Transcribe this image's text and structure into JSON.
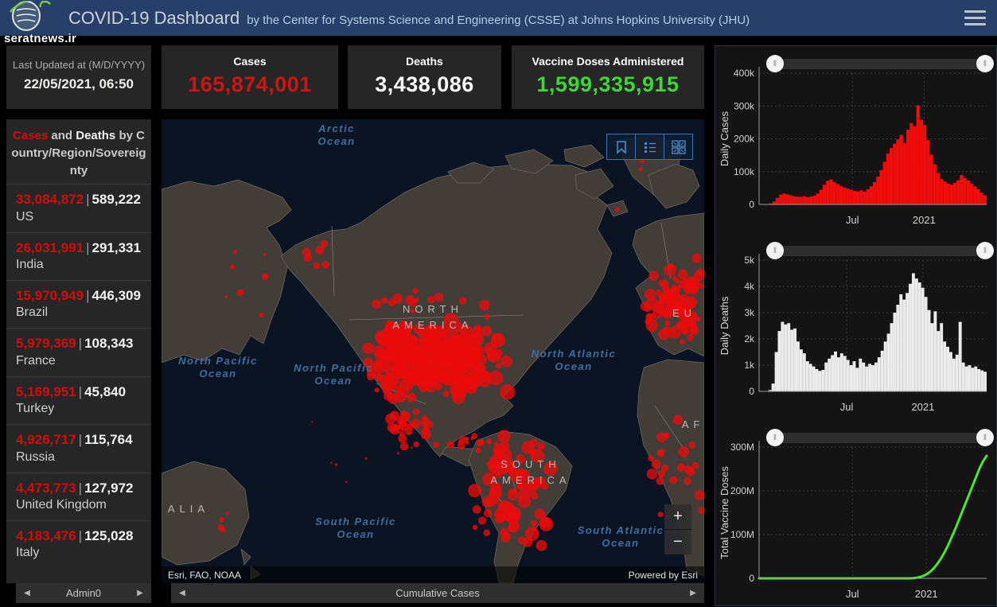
{
  "header": {
    "title": "COVID-19 Dashboard",
    "subtitle": "by the Center for Systems Science and Engineering (CSSE) at Johns Hopkins University (JHU)",
    "watermark": "seratnews.ir"
  },
  "last_updated": {
    "label": "Last Updated at (M/D/YYYY)",
    "value": "22/05/2021, 06:50"
  },
  "stats": {
    "cases": {
      "label": "Cases",
      "value": "165,874,001",
      "color": "#cf1414"
    },
    "deaths": {
      "label": "Deaths",
      "value": "3,438,086",
      "color": "#fbfbfb"
    },
    "vaccine": {
      "label": "Vaccine Doses Administered",
      "value": "1,599,335,915",
      "color": "#3fd63a"
    }
  },
  "country_panel": {
    "title_cases": "Cases",
    "title_and": " and ",
    "title_deaths": "Deaths",
    "title_rest": " by Country/Region/Sovereignty",
    "footer": "Admin0",
    "rows": [
      {
        "cases": "33,084,872",
        "deaths": "589,222",
        "country": "US"
      },
      {
        "cases": "26,031,991",
        "deaths": "291,331",
        "country": "India"
      },
      {
        "cases": "15,970,949",
        "deaths": "446,309",
        "country": "Brazil"
      },
      {
        "cases": "5,979,369",
        "deaths": "108,343",
        "country": "France"
      },
      {
        "cases": "5,169,951",
        "deaths": "45,840",
        "country": "Turkey"
      },
      {
        "cases": "4,926,717",
        "deaths": "115,764",
        "country": "Russia"
      },
      {
        "cases": "4,473,773",
        "deaths": "127,972",
        "country": "United Kingdom"
      },
      {
        "cases": "4,183,476",
        "deaths": "125,028",
        "country": "Italy"
      }
    ]
  },
  "map": {
    "ocean_labels": [
      "Arctic Ocean",
      "North Pacific Ocean",
      "North Pacific Ocean",
      "North Atlantic Ocean",
      "South Pacific Ocean",
      "South Atlantic Ocean"
    ],
    "region_labels": [
      "NORTH AMERICA",
      "SOUTH AMERICA",
      "ALIA",
      "EU",
      "AF"
    ],
    "attribution_left": "Esri, FAO, NOAA",
    "attribution_right": "Powered by Esri",
    "zoom_in": "+",
    "zoom_out": "−",
    "footer": "Cumulative Cases",
    "dot_color": "#ea0b0b"
  },
  "chart_data": [
    {
      "type": "bar",
      "ylabel": "Daily Cases",
      "color": "#f20d0d",
      "ylim": [
        0,
        400000
      ],
      "yticks": [
        {
          "v": 0,
          "label": "0"
        },
        {
          "v": 100000,
          "label": "100k"
        },
        {
          "v": 200000,
          "label": "200k"
        },
        {
          "v": 300000,
          "label": "300k"
        },
        {
          "v": 400000,
          "label": "400k"
        }
      ],
      "xticks": [
        {
          "pos": 0.41,
          "label": "Jul"
        },
        {
          "pos": 0.725,
          "label": "2021"
        }
      ],
      "values": [
        0,
        0,
        1000,
        3000,
        9000,
        20000,
        30000,
        33000,
        31000,
        28000,
        25000,
        24000,
        23000,
        25000,
        22000,
        24000,
        27000,
        33000,
        45000,
        60000,
        72000,
        76000,
        68000,
        62000,
        56000,
        52000,
        48000,
        45000,
        42000,
        40000,
        43000,
        39000,
        46000,
        55000,
        68000,
        85000,
        105000,
        130000,
        155000,
        172000,
        185000,
        198000,
        212000,
        188000,
        228000,
        248000,
        238000,
        302000,
        258000,
        242000,
        196000,
        152000,
        122000,
        96000,
        78000,
        70000,
        64000,
        60000,
        66000,
        74000,
        90000,
        80000,
        73000,
        63000,
        55000,
        46000,
        36000,
        28000
      ]
    },
    {
      "type": "bar",
      "ylabel": "Daily Deaths",
      "color": "#ebebeb",
      "ylim": [
        0,
        5000
      ],
      "yticks": [
        {
          "v": 0,
          "label": "0"
        },
        {
          "v": 1000,
          "label": "1k"
        },
        {
          "v": 2000,
          "label": "2k"
        },
        {
          "v": 3000,
          "label": "3k"
        },
        {
          "v": 4000,
          "label": "4k"
        },
        {
          "v": 5000,
          "label": "5k"
        }
      ],
      "xticks": [
        {
          "pos": 0.385,
          "label": "Jul"
        },
        {
          "pos": 0.72,
          "label": "2021"
        }
      ],
      "values": [
        0,
        0,
        0,
        50,
        300,
        1500,
        2300,
        2650,
        2550,
        2600,
        2350,
        2400,
        1900,
        1600,
        1450,
        1150,
        1050,
        950,
        850,
        780,
        820,
        1100,
        1250,
        1380,
        1520,
        1300,
        1450,
        1350,
        1200,
        1000,
        1150,
        900,
        1250,
        1100,
        950,
        1050,
        1000,
        1100,
        1300,
        1550,
        1900,
        2200,
        2600,
        3000,
        3300,
        3700,
        3500,
        3750,
        4100,
        4500,
        4300,
        4150,
        3950,
        3600,
        3100,
        2600,
        3050,
        2300,
        2600,
        1900,
        1700,
        1500,
        1250,
        1400,
        2650,
        1100,
        950,
        1000,
        900,
        950,
        850,
        800,
        750
      ]
    },
    {
      "type": "line",
      "ylabel": "Total Vaccine Doses",
      "color": "#4ee62b",
      "ylim": [
        0,
        300000000
      ],
      "yticks": [
        {
          "v": 0,
          "label": "0"
        },
        {
          "v": 100000000,
          "label": "100M"
        },
        {
          "v": 200000000,
          "label": "200M"
        },
        {
          "v": 300000000,
          "label": "300M"
        }
      ],
      "xticks": [
        {
          "pos": 0.41,
          "label": "Jul"
        },
        {
          "pos": 0.735,
          "label": "2021"
        }
      ],
      "values": [
        0,
        0,
        0,
        0,
        0,
        0,
        0,
        0,
        0,
        0,
        0,
        0,
        0,
        0,
        0,
        0,
        0,
        0,
        0,
        0,
        0,
        0,
        0,
        0,
        0,
        0,
        0,
        0,
        0,
        0,
        0,
        0,
        0,
        0,
        0,
        0,
        0,
        0,
        0,
        0,
        0,
        0,
        0,
        0,
        500000,
        1500000,
        3000000,
        6000000,
        10000000,
        16000000,
        24000000,
        34000000,
        46000000,
        60000000,
        76000000,
        94000000,
        112000000,
        132000000,
        152000000,
        172000000,
        192000000,
        212000000,
        232000000,
        252000000,
        268000000,
        280000000
      ]
    }
  ]
}
